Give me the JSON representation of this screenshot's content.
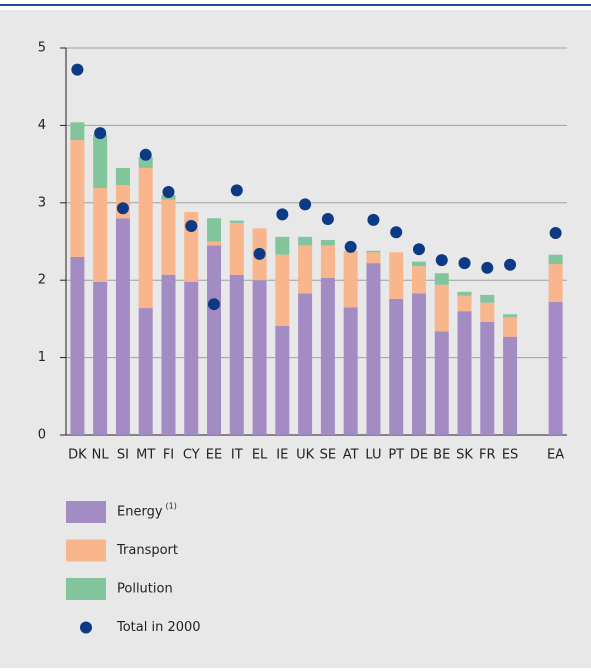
{
  "chart_data": {
    "type": "bar",
    "categories": [
      "DK",
      "NL",
      "SI",
      "MT",
      "FI",
      "CY",
      "EE",
      "IT",
      "EL",
      "IE",
      "UK",
      "SE",
      "AT",
      "LU",
      "PT",
      "DE",
      "BE",
      "SK",
      "FR",
      "ES",
      null,
      "EA"
    ],
    "series": [
      {
        "name": "Energy",
        "name_note": "(1)",
        "type": "bar",
        "color": "#a38cc4",
        "values": [
          2.3,
          1.98,
          2.8,
          1.64,
          2.07,
          1.98,
          2.45,
          2.07,
          2.0,
          1.41,
          1.83,
          2.03,
          1.65,
          2.22,
          1.76,
          1.83,
          1.34,
          1.6,
          1.46,
          1.27,
          null,
          1.72
        ]
      },
      {
        "name": "Transport",
        "type": "bar",
        "color": "#f9b58b",
        "values": [
          1.51,
          1.21,
          0.43,
          1.81,
          0.97,
          0.9,
          0.05,
          0.67,
          0.67,
          0.92,
          0.62,
          0.42,
          0.73,
          0.14,
          0.6,
          0.35,
          0.6,
          0.2,
          0.25,
          0.25,
          null,
          0.49
        ]
      },
      {
        "name": "Pollution",
        "type": "bar",
        "color": "#82c59c",
        "values": [
          0.23,
          0.69,
          0.22,
          0.14,
          0.06,
          0,
          0.3,
          0.03,
          0,
          0.23,
          0.11,
          0.07,
          0,
          0.02,
          0,
          0.06,
          0.15,
          0.05,
          0.1,
          0.04,
          null,
          0.12
        ]
      },
      {
        "name": "Total in 2000",
        "type": "scatter",
        "color": "#0c3a84",
        "values": [
          4.72,
          3.9,
          2.93,
          3.62,
          3.14,
          2.7,
          1.69,
          3.16,
          2.34,
          2.85,
          2.98,
          2.79,
          2.43,
          2.78,
          2.62,
          2.4,
          2.26,
          2.22,
          2.16,
          2.2,
          null,
          2.61
        ]
      }
    ],
    "ylim": [
      0,
      5
    ],
    "yticks": [
      0,
      1,
      2,
      3,
      4,
      5
    ],
    "grid": true
  }
}
